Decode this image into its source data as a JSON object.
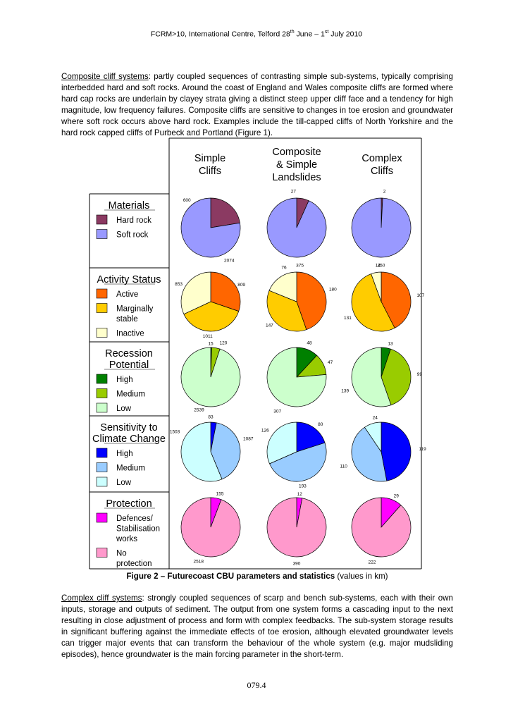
{
  "header": {
    "before": "FCRM>10, International Centre, Telford 28",
    "sup1": "th",
    "middle": " June – 1",
    "sup2": "st",
    "after": " July 2010"
  },
  "para1": {
    "term": "Composite cliff systems",
    "text": ": partly coupled sequences of contrasting simple sub-systems, typically comprising interbedded hard and soft rocks. Around the coast of England and Wales composite cliffs are formed where hard cap rocks are underlain by clayey strata giving a distinct steep upper cliff face and a tendency for high magnitude, low frequency failures. Composite cliffs are sensitive to changes in toe erosion and groundwater where soft rock occurs above hard rock. Examples include the till-capped cliffs of North Yorkshire and the hard rock capped cliffs of Purbeck and Portland (Figure 1)."
  },
  "figure": {
    "columns": [
      [
        "Simple",
        "Cliffs"
      ],
      [
        "Composite",
        "& Simple",
        "Landslides"
      ],
      [
        "Complex",
        "Cliffs"
      ]
    ],
    "colors": {
      "hard_rock": "#8b3a62",
      "soft_rock": "#9999ff",
      "active": "#ff6600",
      "marginal": "#ffcc00",
      "inactive": "#ffffcc",
      "rec_high": "#008000",
      "rec_medium": "#99cc00",
      "rec_low": "#ccffcc",
      "sens_high": "#0000ff",
      "sens_medium": "#99ccff",
      "sens_low": "#ccffff",
      "defences": "#ff00ff",
      "no_protection": "#ff99cc"
    },
    "rows": [
      {
        "title": [
          "Materials"
        ],
        "legend": [
          {
            "label": [
              "Hard rock"
            ],
            "color": "#8b3a62"
          },
          {
            "label": [
              "Soft rock"
            ],
            "color": "#9999ff"
          }
        ]
      },
      {
        "title": [
          "Activity Status"
        ],
        "legend": [
          {
            "label": [
              "Active"
            ],
            "color": "#ff6600"
          },
          {
            "label": [
              "Marginally",
              "stable"
            ],
            "color": "#ffcc00"
          },
          {
            "label": [
              "Inactive"
            ],
            "color": "#ffffcc"
          }
        ]
      },
      {
        "title": [
          "Recession",
          "Potential"
        ],
        "legend": [
          {
            "label": [
              "High"
            ],
            "color": "#008000"
          },
          {
            "label": [
              "Medium"
            ],
            "color": "#99cc00"
          },
          {
            "label": [
              "Low"
            ],
            "color": "#ccffcc"
          }
        ]
      },
      {
        "title": [
          "Sensitivity to",
          "Climate Change"
        ],
        "legend": [
          {
            "label": [
              "High"
            ],
            "color": "#0000ff"
          },
          {
            "label": [
              "Medium"
            ],
            "color": "#99ccff"
          },
          {
            "label": [
              "Low"
            ],
            "color": "#ccffff"
          }
        ]
      },
      {
        "title": [
          "Protection"
        ],
        "legend": [
          {
            "label": [
              "Defences/",
              "Stabilisation",
              "works"
            ],
            "color": "#ff00ff"
          },
          {
            "label": [
              "No",
              "protection"
            ],
            "color": "#ff99cc"
          }
        ]
      }
    ]
  },
  "chart_data": {
    "type": "pie",
    "units": "km",
    "charts": [
      {
        "row": "Materials",
        "column": "Simple Cliffs",
        "slices": [
          {
            "name": "Hard rock",
            "value": 600
          },
          {
            "name": "Soft rock",
            "value": 2074
          }
        ]
      },
      {
        "row": "Materials",
        "column": "Composite & Simple Landslides",
        "slices": [
          {
            "name": "Hard rock",
            "value": 27
          },
          {
            "name": "Soft rock",
            "value": 375
          }
        ]
      },
      {
        "row": "Materials",
        "column": "Complex Cliffs",
        "slices": [
          {
            "name": "Hard rock",
            "value": 2
          },
          {
            "name": "Soft rock",
            "value": 250
          }
        ]
      },
      {
        "row": "Activity Status",
        "column": "Simple Cliffs",
        "slices": [
          {
            "name": "Active",
            "value": 809
          },
          {
            "name": "Marginally stable",
            "value": 1011
          },
          {
            "name": "Inactive",
            "value": 853
          }
        ]
      },
      {
        "row": "Activity Status",
        "column": "Composite & Simple Landslides",
        "slices": [
          {
            "name": "Active",
            "value": 180
          },
          {
            "name": "Marginally stable",
            "value": 147
          },
          {
            "name": "Inactive",
            "value": 76
          }
        ]
      },
      {
        "row": "Activity Status",
        "column": "Complex Cliffs",
        "slices": [
          {
            "name": "Active",
            "value": 107
          },
          {
            "name": "Marginally stable",
            "value": 131
          },
          {
            "name": "Inactive",
            "value": 14
          }
        ]
      },
      {
        "row": "Recession Potential",
        "column": "Simple Cliffs",
        "slices": [
          {
            "name": "High",
            "value": 15
          },
          {
            "name": "Medium",
            "value": 120
          },
          {
            "name": "Low",
            "value": 2539
          }
        ]
      },
      {
        "row": "Recession Potential",
        "column": "Composite & Simple Landslides",
        "slices": [
          {
            "name": "High",
            "value": 48
          },
          {
            "name": "Medium",
            "value": 47
          },
          {
            "name": "Low",
            "value": 307
          }
        ]
      },
      {
        "row": "Recession Potential",
        "column": "Complex Cliffs",
        "slices": [
          {
            "name": "High",
            "value": 13
          },
          {
            "name": "Medium",
            "value": 99
          },
          {
            "name": "Low",
            "value": 139
          }
        ]
      },
      {
        "row": "Sensitivity to Climate Change",
        "column": "Simple Cliffs",
        "slices": [
          {
            "name": "High",
            "value": 83
          },
          {
            "name": "Medium",
            "value": 1087
          },
          {
            "name": "Low",
            "value": 1503
          }
        ]
      },
      {
        "row": "Sensitivity to Climate Change",
        "column": "Composite & Simple Landslides",
        "slices": [
          {
            "name": "High",
            "value": 80
          },
          {
            "name": "Medium",
            "value": 193
          },
          {
            "name": "Low",
            "value": 126
          }
        ]
      },
      {
        "row": "Sensitivity to Climate Change",
        "column": "Complex Cliffs",
        "slices": [
          {
            "name": "High",
            "value": 119
          },
          {
            "name": "Medium",
            "value": 110
          },
          {
            "name": "Low",
            "value": 24
          }
        ]
      },
      {
        "row": "Protection",
        "column": "Simple Cliffs",
        "slices": [
          {
            "name": "Defences/Stabilisation works",
            "value": 155
          },
          {
            "name": "No protection",
            "value": 2518
          }
        ]
      },
      {
        "row": "Protection",
        "column": "Composite & Simple Landslides",
        "slices": [
          {
            "name": "Defences/Stabilisation works",
            "value": 12
          },
          {
            "name": "No protection",
            "value": 390
          }
        ]
      },
      {
        "row": "Protection",
        "column": "Complex Cliffs",
        "slices": [
          {
            "name": "Defences/Stabilisation works",
            "value": 29
          },
          {
            "name": "No protection",
            "value": 222
          }
        ]
      }
    ]
  },
  "caption": {
    "bold": "Figure 2 – Futurecoast CBU parameters and statistics",
    "normal": " (values in km)"
  },
  "para2": {
    "term": "Complex cliff systems",
    "text": ": strongly coupled sequences of scarp and bench sub-systems, each with their own inputs, storage and outputs of sediment. The output from one system forms a cascading input to the next resulting in close adjustment of process and form with complex feedbacks. The sub-system storage results in significant buffering against the immediate effects of toe erosion, although elevated groundwater levels can trigger major events that can transform the behaviour of the whole system (e.g. major mudsliding episodes), hence groundwater is the main forcing parameter in the short-term."
  },
  "footer": "079.4"
}
